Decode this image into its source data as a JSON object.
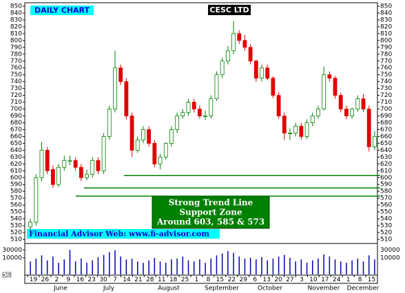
{
  "chart_data": {
    "type": "candlestick",
    "title": "CESC LTD",
    "subtitle": "DAILY CHART",
    "annotation": [
      "Strong Trend Line",
      "Support Zone",
      "Around 603, 585 & 573"
    ],
    "footer": "Financial Advisor Web: www.fi-advisor.com",
    "support_lines": [
      603,
      585,
      573
    ],
    "open": [
      528,
      535,
      600,
      640,
      612,
      590,
      615,
      625,
      625,
      615,
      600,
      605,
      625,
      610,
      660,
      700,
      760,
      740,
      690,
      640,
      655,
      670,
      650,
      620,
      630,
      650,
      670,
      690,
      695,
      710,
      700,
      690,
      690,
      715,
      750,
      770,
      785,
      810,
      800,
      790,
      770,
      745,
      760,
      745,
      720,
      690,
      665,
      665,
      675,
      660,
      680,
      690,
      700,
      750,
      745,
      720,
      700,
      690,
      700,
      715,
      700,
      645
    ],
    "high": [
      540,
      605,
      652,
      645,
      618,
      620,
      632,
      632,
      630,
      620,
      612,
      630,
      630,
      665,
      705,
      785,
      765,
      745,
      695,
      660,
      675,
      675,
      655,
      635,
      652,
      675,
      695,
      700,
      715,
      715,
      705,
      698,
      720,
      755,
      775,
      792,
      828,
      815,
      808,
      795,
      772,
      765,
      765,
      748,
      725,
      695,
      672,
      680,
      680,
      685,
      695,
      705,
      762,
      755,
      748,
      724,
      705,
      702,
      720,
      722,
      705,
      668
    ],
    "low": [
      522,
      530,
      595,
      605,
      585,
      586,
      610,
      618,
      610,
      595,
      596,
      600,
      605,
      605,
      655,
      695,
      735,
      685,
      630,
      636,
      650,
      645,
      615,
      612,
      626,
      645,
      665,
      686,
      690,
      695,
      686,
      684,
      686,
      712,
      745,
      765,
      780,
      795,
      785,
      765,
      740,
      740,
      742,
      716,
      686,
      655,
      655,
      660,
      655,
      656,
      675,
      686,
      698,
      740,
      715,
      695,
      685,
      686,
      696,
      696,
      638,
      640
    ],
    "close": [
      535,
      600,
      640,
      610,
      590,
      615,
      625,
      625,
      615,
      600,
      605,
      625,
      610,
      660,
      700,
      760,
      740,
      690,
      640,
      655,
      670,
      650,
      620,
      630,
      650,
      670,
      690,
      695,
      710,
      700,
      690,
      690,
      715,
      750,
      770,
      785,
      810,
      800,
      790,
      770,
      745,
      760,
      745,
      720,
      690,
      665,
      665,
      675,
      660,
      680,
      690,
      700,
      750,
      745,
      720,
      700,
      690,
      700,
      715,
      700,
      645,
      660
    ],
    "volume": [
      6000,
      9000,
      14000,
      7000,
      12000,
      5000,
      8000,
      30000,
      6000,
      9000,
      5000,
      7000,
      11000,
      15000,
      22000,
      28000,
      12000,
      8000,
      9000,
      6000,
      5000,
      7000,
      10000,
      6000,
      5000,
      8000,
      9000,
      12000,
      7000,
      6000,
      8000,
      5000,
      9000,
      14000,
      18000,
      25000,
      20000,
      12000,
      9000,
      10000,
      8000,
      11000,
      7000,
      9000,
      12000,
      15000,
      10000,
      6000,
      8000,
      5000,
      7000,
      9000,
      16000,
      12000,
      8000,
      6000,
      5000,
      7000,
      9000,
      6000,
      14000,
      8000
    ],
    "volume_unit": "x10",
    "volume_log": true,
    "volume_ylim": [
      1000,
      60000
    ],
    "volume_ticks": [
      30000,
      10000
    ],
    "ylim": [
      510,
      850
    ],
    "yticks": [
      510,
      520,
      530,
      540,
      550,
      560,
      570,
      580,
      590,
      600,
      610,
      620,
      630,
      640,
      650,
      660,
      670,
      680,
      690,
      700,
      710,
      720,
      730,
      740,
      750,
      760,
      770,
      780,
      790,
      800,
      810,
      820,
      830,
      840,
      850
    ],
    "x_day_labels": [
      "19",
      "26",
      "2",
      "9",
      "16",
      "23",
      "30",
      "7",
      "14",
      "21",
      "28",
      "11",
      "18",
      "25",
      "1",
      "8",
      "15",
      "22",
      "29",
      "6",
      "13",
      "20",
      "27",
      "3",
      "10",
      "17",
      "24",
      "1",
      "8",
      "15"
    ],
    "months": [
      "June",
      "July",
      "August",
      "September",
      "October",
      "November",
      "December"
    ],
    "up_color": "#008000",
    "down_color": "#e00000",
    "support_color": "#008000"
  }
}
